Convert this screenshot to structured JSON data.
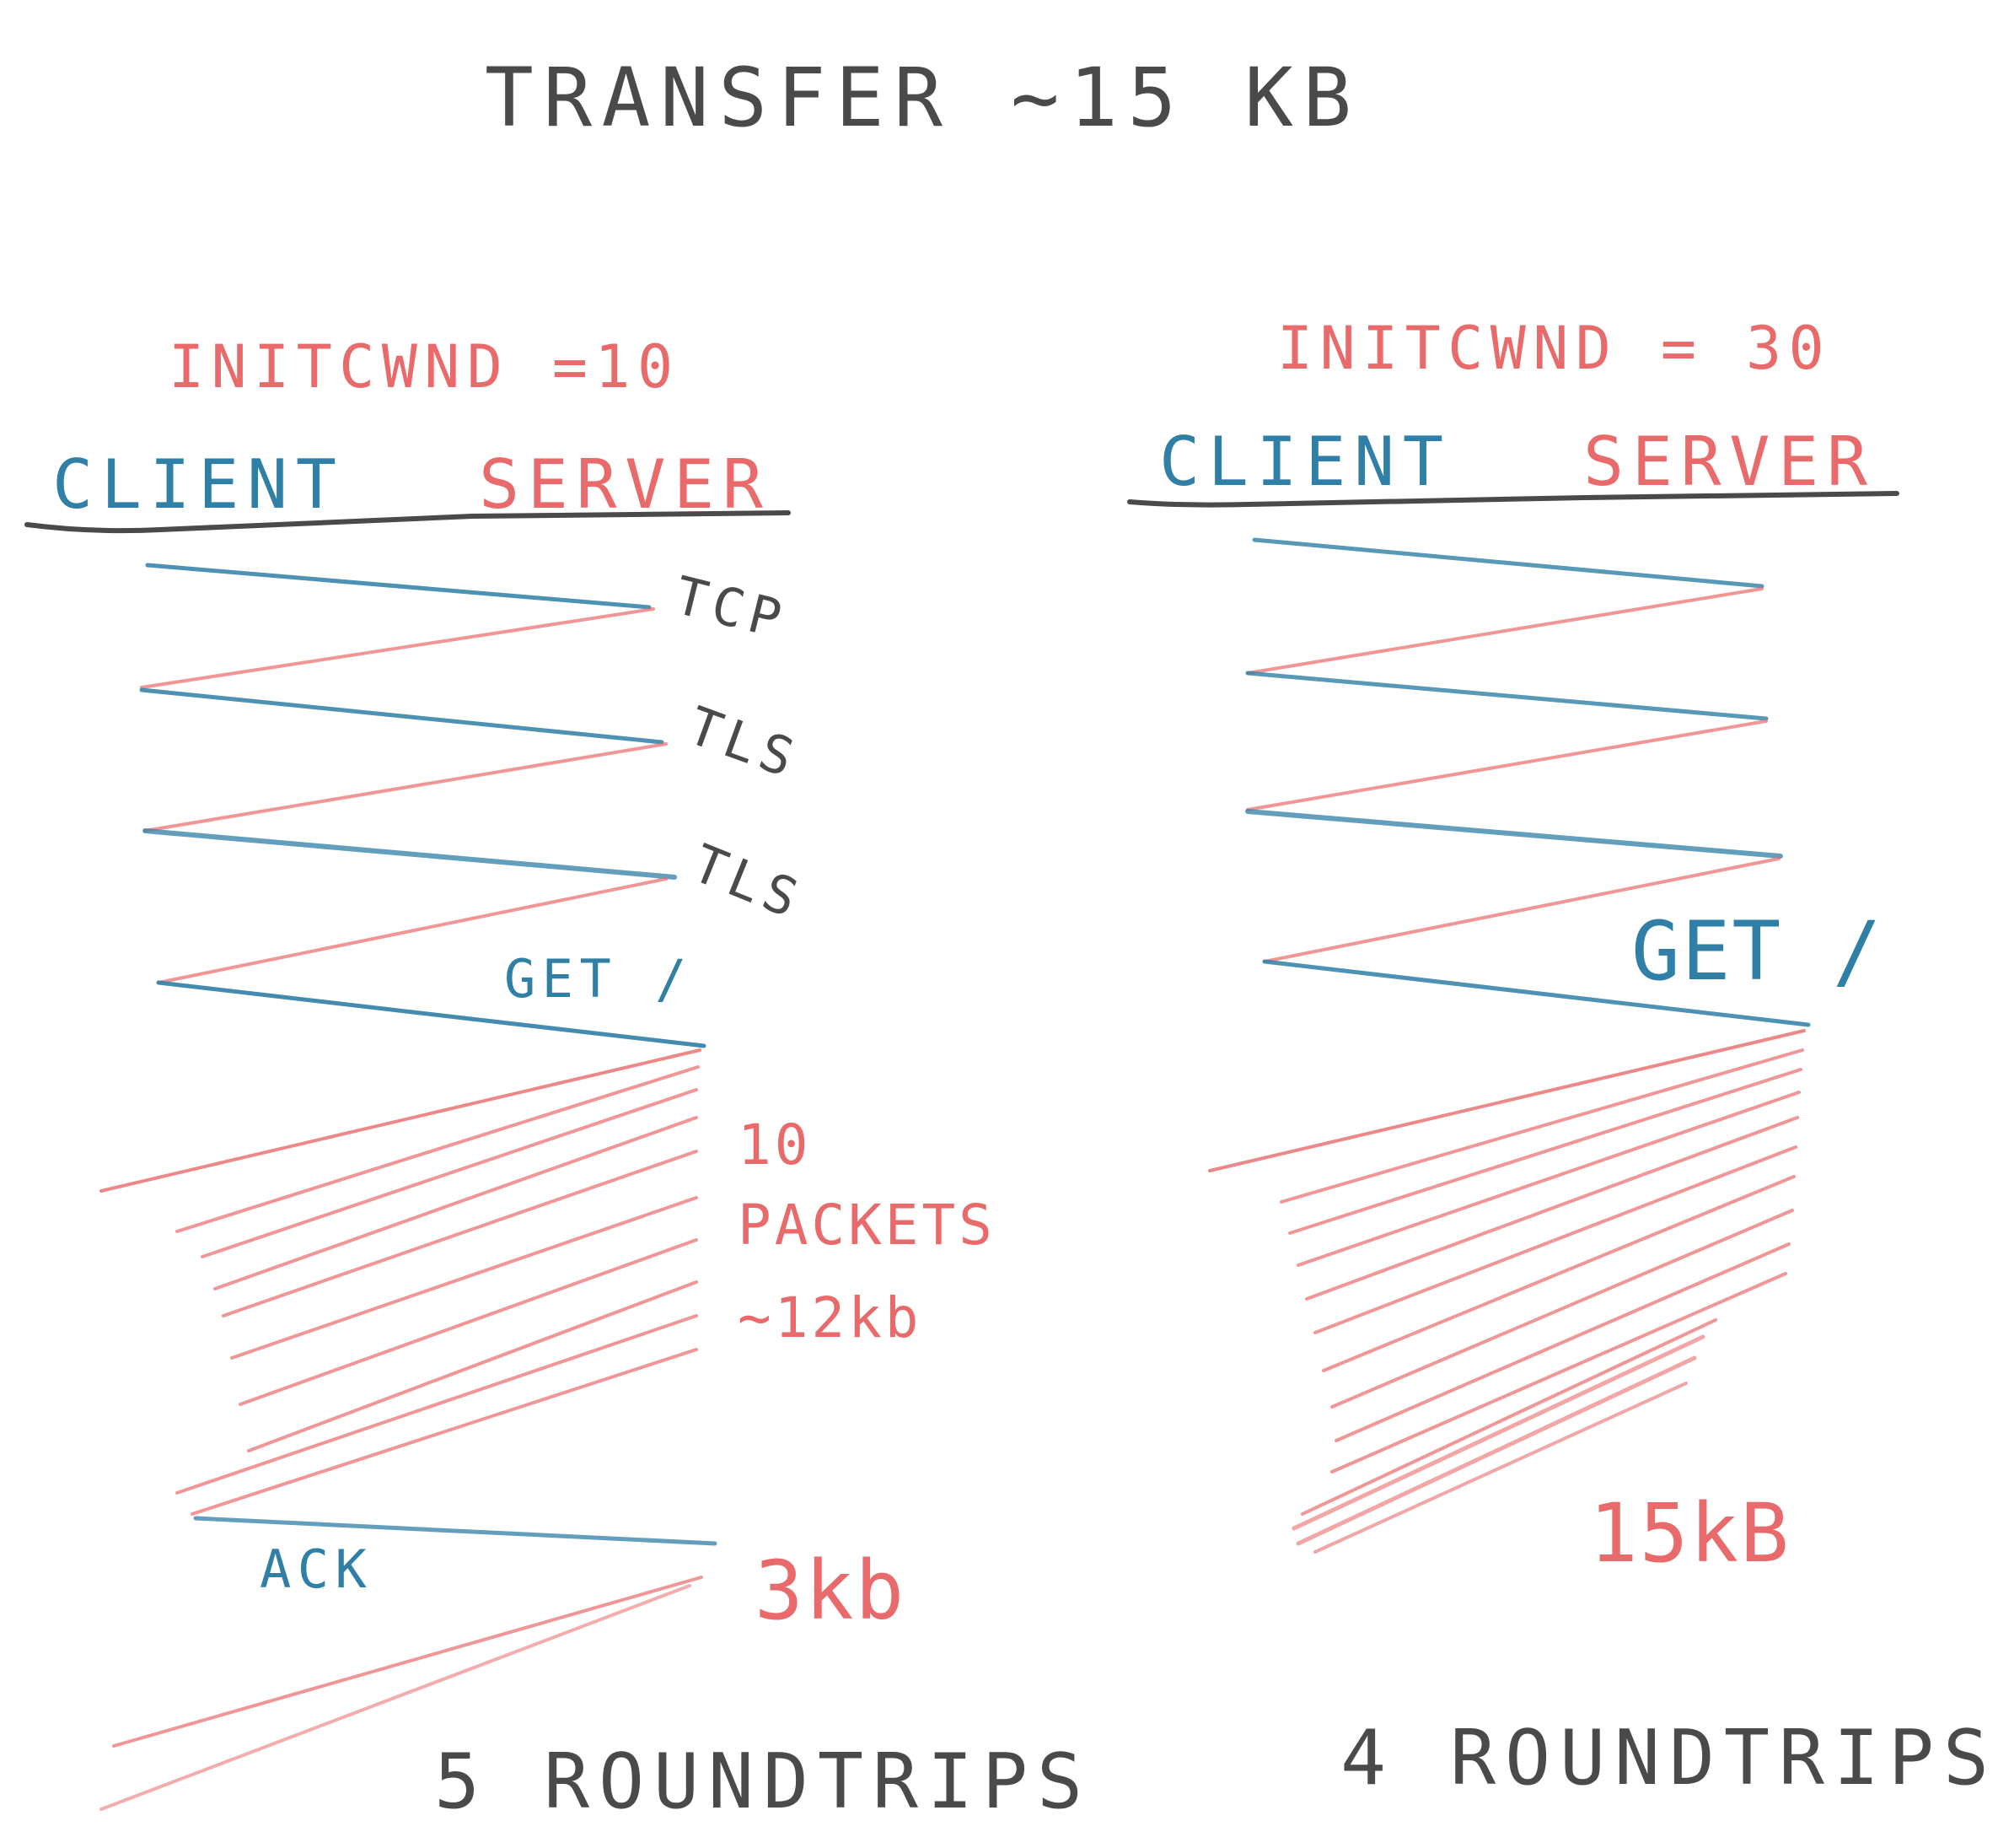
{
  "title": "TRANSFER  ~15 KB",
  "colors": {
    "client": "#2f7fa6",
    "server": "#e96a6a",
    "ink": "#4a4a4a"
  },
  "left": {
    "initcwnd": "INITCWND =10",
    "client": "CLIENT",
    "server": "SERVER",
    "stage_labels": [
      "TCP",
      "TLS",
      "TLS"
    ],
    "get_label": "GET /",
    "packets_lines": [
      "10",
      "PACKETS",
      "~12kb"
    ],
    "ack_label": "ACK",
    "remaining_label": "3kb",
    "roundtrips": "5  ROUNDTRIPS"
  },
  "right": {
    "initcwnd": "INITCWND = 30",
    "client": "CLIENT",
    "server": "SERVER",
    "get_label": "GET /",
    "total_label": "15kB",
    "roundtrips": "4  ROUNDTRIPS"
  }
}
